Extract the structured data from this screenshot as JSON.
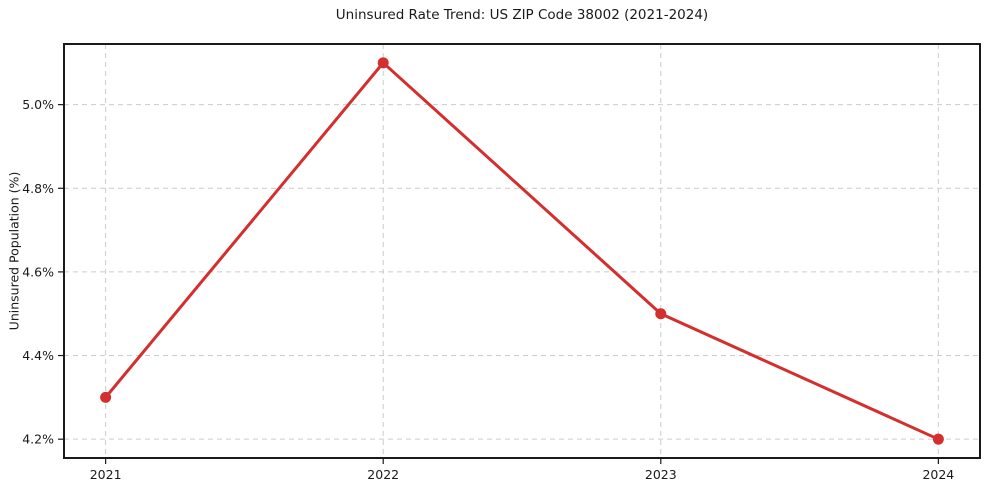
{
  "page": {
    "background": "#ffffff"
  },
  "chart_data": {
    "type": "line",
    "title": "Uninsured Rate Trend: US ZIP Code 38002 (2021-2024)",
    "xlabel": "",
    "ylabel": "Uninsured Population (%)",
    "x": [
      2021,
      2022,
      2023,
      2024
    ],
    "x_tick_labels": [
      "2021",
      "2022",
      "2023",
      "2024"
    ],
    "series": [
      {
        "name": "uninsured-rate",
        "values": [
          4.3,
          5.1,
          4.5,
          4.2
        ],
        "color": "#d32f2f",
        "marker": "circle",
        "line_width": 3,
        "marker_radius": 5.5
      }
    ],
    "y_ticks": [
      4.2,
      4.4,
      4.6,
      4.8,
      5.0
    ],
    "y_tick_labels": [
      "4.2%",
      "4.4%",
      "4.6%",
      "4.8%",
      "5.0%"
    ],
    "xlim": [
      2020.85,
      2024.15
    ],
    "ylim": [
      4.155,
      5.145
    ],
    "grid": {
      "visible": true,
      "style": "dashed",
      "color": "#cccccc"
    },
    "legend": {
      "visible": false
    },
    "axis_color": "#1a1a1a",
    "text_color": "#1a1a1a",
    "tick_font_size": 12.5
  }
}
